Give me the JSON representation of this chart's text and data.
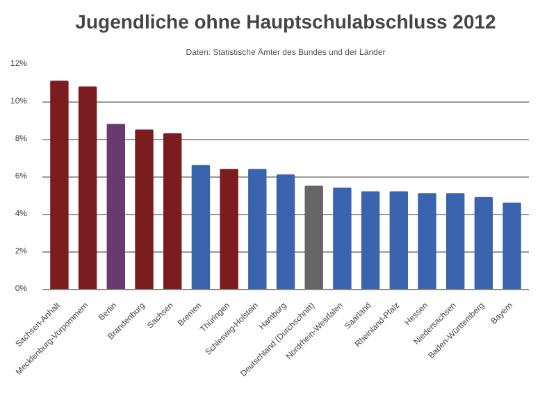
{
  "chart_data": {
    "type": "bar",
    "title": "Jugendliche ohne Hauptschulabschluss 2012",
    "annotations": [
      "Daten: Statistische Ämter des Bundes und der Länder"
    ],
    "categories": [
      "Sachsen-Anhalt",
      "Mecklenburg-Vorpommern",
      "Berlin",
      "Brandenburg",
      "Sachsen",
      "Bremen",
      "Thüringen",
      "Schleswig-Holstein",
      "Hamburg",
      "Deutschland (Durchschnitt)",
      "Nordrhein-Westfalen",
      "Saarland",
      "Rheinland-Pfalz",
      "Hessen",
      "Niedersachsen",
      "Baden-Württemberg",
      "Bayern"
    ],
    "values": [
      11.1,
      10.8,
      8.8,
      8.5,
      8.3,
      6.6,
      6.4,
      6.4,
      6.1,
      5.5,
      5.4,
      5.2,
      5.2,
      5.1,
      5.1,
      4.9,
      4.6
    ],
    "colors": [
      "#7b1c1f",
      "#7b1c1f",
      "#6a3a6e",
      "#7b1c1f",
      "#7b1c1f",
      "#3a64ad",
      "#7b1c1f",
      "#3a64ad",
      "#3a64ad",
      "#666666",
      "#3a64ad",
      "#3a64ad",
      "#3a64ad",
      "#3a64ad",
      "#3a64ad",
      "#3a64ad",
      "#3a64ad"
    ],
    "ylim": [
      0,
      12
    ],
    "yticks": [
      {
        "value": 0,
        "label": "0%"
      },
      {
        "value": 2,
        "label": "2%"
      },
      {
        "value": 4,
        "label": "4%"
      },
      {
        "value": 6,
        "label": "6%"
      },
      {
        "value": 8,
        "label": "8%"
      },
      {
        "value": 10,
        "label": "10%"
      },
      {
        "value": 12,
        "label": "12%"
      }
    ],
    "grid": "y"
  }
}
